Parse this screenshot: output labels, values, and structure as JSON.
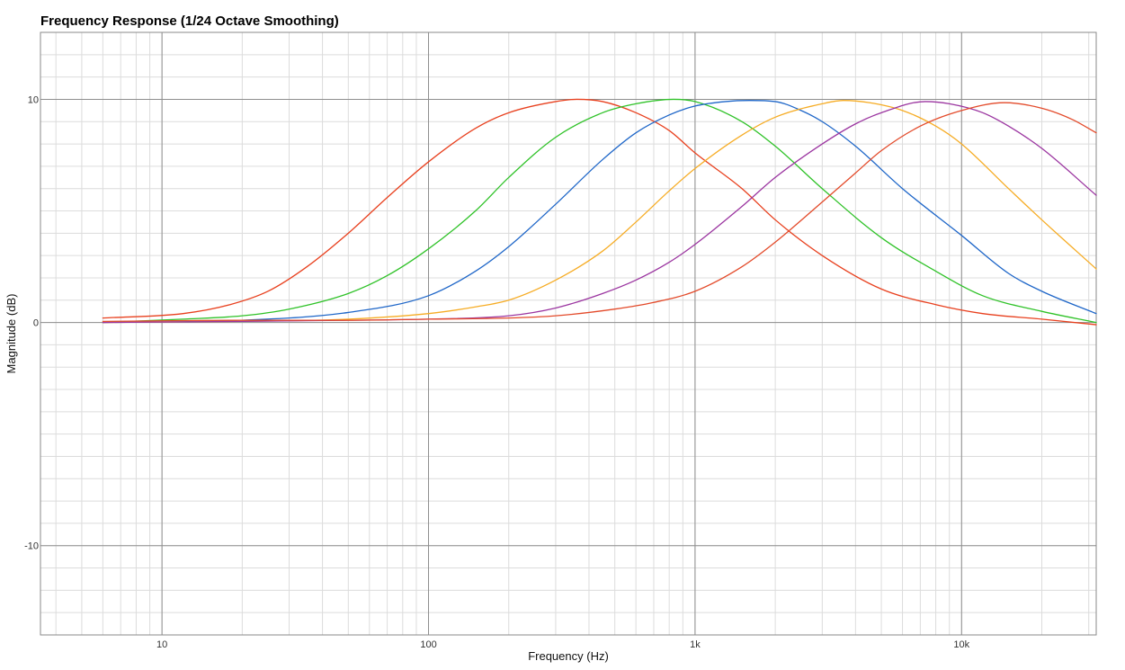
{
  "chart_data": {
    "type": "line",
    "title": "Frequency Response (1/24 Octave Smoothing)",
    "xlabel": "Frequency (Hz)",
    "ylabel": "Magnitude (dB)",
    "x_scale": "log",
    "xlim": [
      3.5,
      32000
    ],
    "ylim": [
      -14,
      13
    ],
    "x_ticks": [
      {
        "value": 10,
        "label": "10"
      },
      {
        "value": 100,
        "label": "100"
      },
      {
        "value": 1000,
        "label": "1k"
      },
      {
        "value": 10000,
        "label": "10k"
      }
    ],
    "y_ticks": [
      {
        "value": 10,
        "label": "10"
      },
      {
        "value": 0,
        "label": "0"
      },
      {
        "value": -10,
        "label": "-10"
      }
    ],
    "grid": true,
    "legend": "none",
    "series": [
      {
        "color": "#e8401e",
        "x": [
          6,
          12,
          18,
          25,
          35,
          50,
          70,
          100,
          150,
          200,
          300,
          360,
          450,
          600,
          800,
          1000,
          1500,
          2000,
          3000,
          5000,
          8000,
          12000,
          20000,
          32000
        ],
        "values": [
          0.2,
          0.4,
          0.8,
          1.4,
          2.5,
          4.0,
          5.6,
          7.2,
          8.7,
          9.4,
          9.9,
          10.0,
          9.9,
          9.4,
          8.6,
          7.6,
          6.0,
          4.6,
          3.0,
          1.5,
          0.8,
          0.4,
          0.15,
          -0.1
        ]
      },
      {
        "color": "#2fc228",
        "x": [
          6,
          12,
          20,
          30,
          50,
          70,
          100,
          150,
          200,
          300,
          450,
          600,
          830,
          1000,
          1500,
          2000,
          3000,
          5000,
          8000,
          12000,
          20000,
          32000
        ],
        "values": [
          0.0,
          0.15,
          0.3,
          0.6,
          1.3,
          2.1,
          3.3,
          5.0,
          6.5,
          8.3,
          9.4,
          9.8,
          10.0,
          9.9,
          9.0,
          7.9,
          6.0,
          3.8,
          2.3,
          1.2,
          0.5,
          0.0
        ]
      },
      {
        "color": "#1e66c8",
        "x": [
          6,
          20,
          50,
          100,
          150,
          200,
          300,
          450,
          600,
          800,
          1000,
          1300,
          1600,
          2000,
          2500,
          3000,
          4000,
          6000,
          10000,
          15000,
          20000,
          32000
        ],
        "values": [
          0.0,
          0.1,
          0.45,
          1.2,
          2.3,
          3.4,
          5.3,
          7.3,
          8.5,
          9.3,
          9.7,
          9.9,
          9.95,
          9.9,
          9.5,
          9.0,
          7.9,
          6.0,
          3.9,
          2.2,
          1.4,
          0.4
        ]
      },
      {
        "color": "#f6ac24",
        "x": [
          6,
          20,
          50,
          100,
          150,
          200,
          300,
          450,
          600,
          800,
          1000,
          1500,
          2000,
          3000,
          3600,
          4500,
          6000,
          8000,
          10000,
          15000,
          20000,
          32000
        ],
        "values": [
          0.0,
          0.05,
          0.15,
          0.4,
          0.7,
          1.0,
          1.9,
          3.2,
          4.5,
          5.9,
          6.9,
          8.4,
          9.2,
          9.8,
          9.95,
          9.85,
          9.5,
          8.8,
          8.0,
          6.0,
          4.6,
          2.4
        ]
      },
      {
        "color": "#9b35a0",
        "x": [
          6,
          20,
          50,
          100,
          200,
          300,
          450,
          600,
          800,
          1000,
          1500,
          2000,
          3000,
          4000,
          5000,
          7300,
          9000,
          12000,
          15000,
          20000,
          32000
        ],
        "values": [
          0.0,
          0.05,
          0.1,
          0.15,
          0.3,
          0.65,
          1.3,
          1.9,
          2.7,
          3.5,
          5.2,
          6.5,
          8.0,
          8.9,
          9.4,
          9.9,
          9.8,
          9.4,
          8.8,
          7.8,
          5.7
        ]
      },
      {
        "color": "#e34a2a",
        "x": [
          6,
          20,
          50,
          100,
          200,
          300,
          500,
          700,
          1000,
          1500,
          2000,
          3000,
          4000,
          5000,
          7000,
          10000,
          14500,
          20000,
          26000,
          32000
        ],
        "values": [
          0.05,
          0.1,
          0.1,
          0.15,
          0.2,
          0.3,
          0.6,
          0.9,
          1.4,
          2.5,
          3.6,
          5.4,
          6.7,
          7.7,
          8.8,
          9.5,
          9.85,
          9.6,
          9.1,
          8.5
        ]
      }
    ]
  }
}
